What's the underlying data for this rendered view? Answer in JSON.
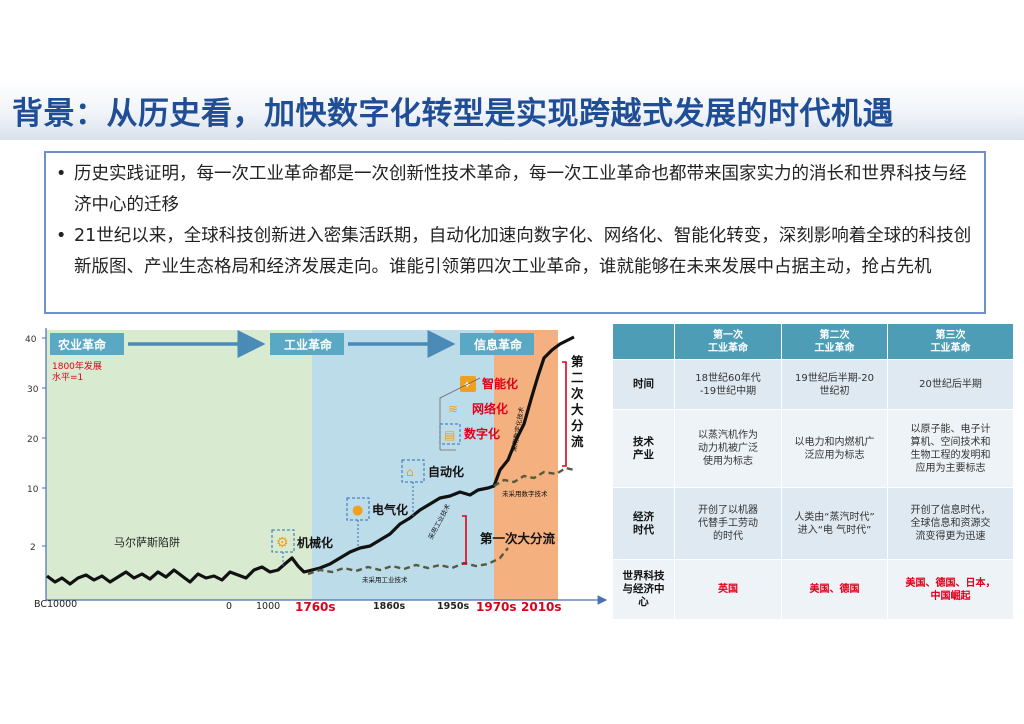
{
  "title": "背景：从历史看，加快数字化转型是实现跨越式发展的时代机遇",
  "bullets": [
    "历史实践证明，每一次工业革命都是一次创新性技术革命，每一次工业革命也都带来国家实力的消长和世界科技与经济中心的迁移",
    "21世纪以来，全球科技创新进入密集活跃期，自动化加速向数字化、网络化、智能化转变，深刻影响着全球的科技创新版图、产业生态格局和经济发展走向。谁能引领第四次工业革命，谁就能够在未来发展中占据主动，抢占先机"
  ],
  "chart": {
    "y_ticks": [
      "40",
      "30",
      "20",
      "10",
      "2"
    ],
    "x_ticks": [
      "BC10000",
      "0",
      "1000",
      "1760s",
      "1860s",
      "1950s",
      "1970s",
      "2010s"
    ],
    "eras": [
      "农业革命",
      "工业革命",
      "信息革命"
    ],
    "baseline_note": "1800年发展\n水平=1",
    "malthus": "马尔萨斯陷阱",
    "stages": [
      "机械化",
      "电气化",
      "自动化",
      "数字化",
      "网络化",
      "智能化"
    ],
    "first_divergence": "第一次大分流",
    "second_divergence": "第二次大分流",
    "curve_labels": {
      "adopted_industrial": "采用工业技术",
      "not_adopted_industrial": "未采用工业技术",
      "adopted_digital": "采用数字化技术",
      "not_adopted_digital": "未采用数字技术"
    },
    "colors": {
      "agri": "#d8ead0",
      "industrial": "#bcdce9",
      "info": "#f5b07f",
      "red": "#e0001b",
      "arrow": "#4a8ab7"
    }
  },
  "table": {
    "columns": [
      "第一次\n工业革命",
      "第二次\n工业革命",
      "第三次\n工业革命"
    ],
    "rows": [
      {
        "label": "时间",
        "cells": [
          "18世纪60年代\n-19世纪中期",
          "19世纪后半期-20\n世纪初",
          "20世纪后半期"
        ]
      },
      {
        "label": "技术\n产业",
        "cells": [
          "以蒸汽机作为\n动力机被广泛\n使用为标志",
          "以电力和内燃机广\n泛应用为标志",
          "以原子能、电子计\n算机、空间技术和\n生物工程的发明和\n应用为主要标志"
        ]
      },
      {
        "label": "经济\n时代",
        "cells": [
          "开创了以机器\n代替手工劳动\n的时代",
          "人类由“蒸汽时代”\n进入“电 气时代”",
          "开创了信息时代，\n全球信息和资源交\n流变得更为迅速"
        ]
      },
      {
        "label": "世界科技\n与经济中\n心",
        "cells": [
          "英国",
          "美国、德国",
          "美国、德国、日本，\n中国崛起"
        ]
      }
    ]
  }
}
